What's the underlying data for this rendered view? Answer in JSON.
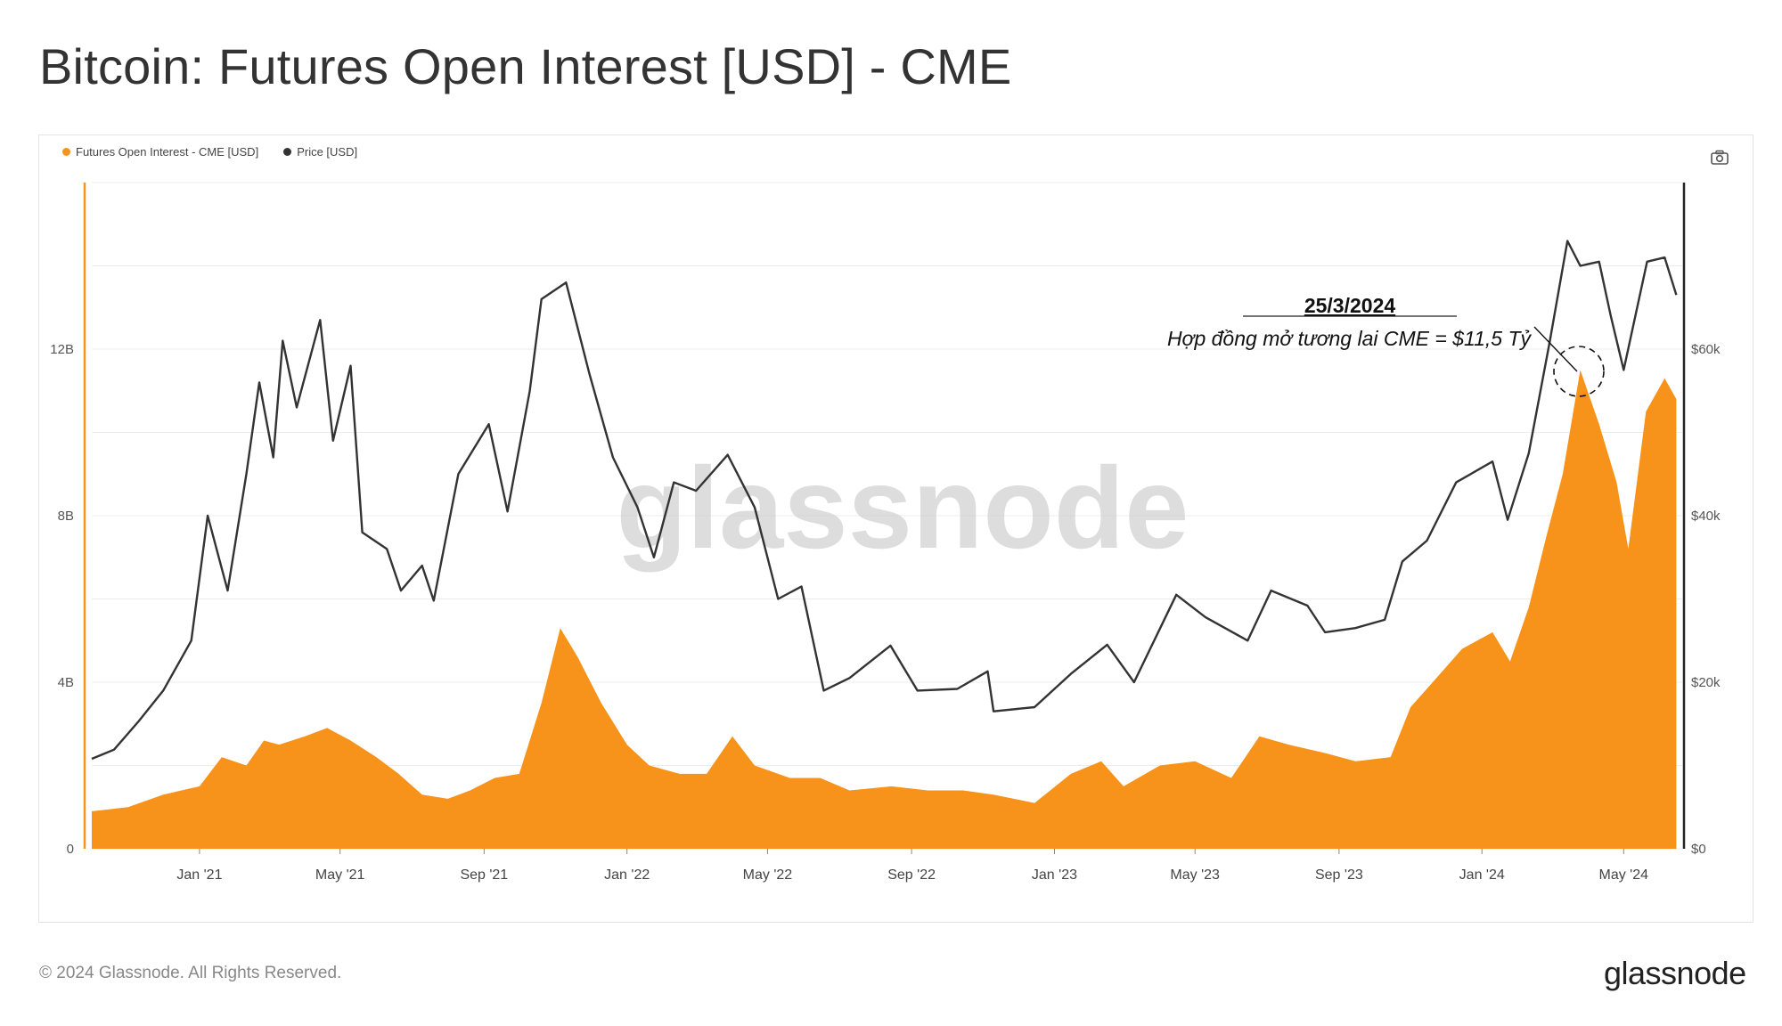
{
  "header": {
    "title": "Bitcoin: Futures Open Interest [USD] - CME"
  },
  "legend": [
    {
      "label": "Futures Open Interest - CME [USD]",
      "color": "#f7931a"
    },
    {
      "label": "Price [USD]",
      "color": "#333333"
    }
  ],
  "toolbar": {
    "screenshot_icon": "camera-icon"
  },
  "watermark": "glassnode",
  "footer": {
    "copyright": "© 2024 Glassnode. All Rights Reserved.",
    "logo": "glassnode"
  },
  "annotation": {
    "date": "25/3/2024",
    "text": "Hợp đồng mở tương lai CME = $11,5 Tỷ",
    "point": {
      "date": "2024-03-25",
      "open_interest_usd": 11500000000
    }
  },
  "chart_data": {
    "type": "area+line",
    "x_range": [
      "2020-10-01",
      "2024-06-20"
    ],
    "x_ticks": [
      {
        "date": "2021-01-01",
        "label": "Jan '21"
      },
      {
        "date": "2021-05-01",
        "label": "May '21"
      },
      {
        "date": "2021-09-01",
        "label": "Sep '21"
      },
      {
        "date": "2022-01-01",
        "label": "Jan '22"
      },
      {
        "date": "2022-05-01",
        "label": "May '22"
      },
      {
        "date": "2022-09-01",
        "label": "Sep '22"
      },
      {
        "date": "2023-01-01",
        "label": "Jan '23"
      },
      {
        "date": "2023-05-01",
        "label": "May '23"
      },
      {
        "date": "2023-09-01",
        "label": "Sep '23"
      },
      {
        "date": "2024-01-01",
        "label": "Jan '24"
      },
      {
        "date": "2024-05-01",
        "label": "May '24"
      }
    ],
    "y_left": {
      "ticks": [
        {
          "value": 0,
          "label": "0"
        },
        {
          "value": 4000000000,
          "label": "4B"
        },
        {
          "value": 8000000000,
          "label": "8B"
        },
        {
          "value": 12000000000,
          "label": "12B"
        }
      ],
      "range": [
        0,
        16000000000
      ]
    },
    "y_right": {
      "ticks": [
        {
          "value": 0,
          "label": "$0"
        },
        {
          "value": 20000,
          "label": "$20k"
        },
        {
          "value": 40000,
          "label": "$40k"
        },
        {
          "value": 60000,
          "label": "$60k"
        }
      ],
      "range": [
        0,
        80000
      ]
    },
    "grid": true,
    "legend_position": "top-left",
    "series": [
      {
        "name": "Futures Open Interest - CME [USD]",
        "type": "area",
        "axis": "left",
        "color": "#f7931a",
        "points": [
          [
            "2020-10-01",
            900000000.0
          ],
          [
            "2020-11-01",
            1000000000.0
          ],
          [
            "2020-12-01",
            1300000000.0
          ],
          [
            "2021-01-01",
            1500000000.0
          ],
          [
            "2021-01-20",
            2200000000.0
          ],
          [
            "2021-02-10",
            2000000000.0
          ],
          [
            "2021-02-25",
            2600000000.0
          ],
          [
            "2021-03-10",
            2500000000.0
          ],
          [
            "2021-04-01",
            2700000000.0
          ],
          [
            "2021-04-20",
            2900000000.0
          ],
          [
            "2021-05-10",
            2600000000.0
          ],
          [
            "2021-06-01",
            2200000000.0
          ],
          [
            "2021-06-20",
            1800000000.0
          ],
          [
            "2021-07-10",
            1300000000.0
          ],
          [
            "2021-08-01",
            1200000000.0
          ],
          [
            "2021-08-20",
            1400000000.0
          ],
          [
            "2021-09-10",
            1700000000.0
          ],
          [
            "2021-10-01",
            1800000000.0
          ],
          [
            "2021-10-20",
            3500000000.0
          ],
          [
            "2021-11-05",
            5300000000.0
          ],
          [
            "2021-11-20",
            4600000000.0
          ],
          [
            "2021-12-10",
            3500000000.0
          ],
          [
            "2022-01-01",
            2500000000.0
          ],
          [
            "2022-01-20",
            2000000000.0
          ],
          [
            "2022-02-15",
            1800000000.0
          ],
          [
            "2022-03-10",
            1800000000.0
          ],
          [
            "2022-04-01",
            2700000000.0
          ],
          [
            "2022-04-20",
            2000000000.0
          ],
          [
            "2022-05-20",
            1700000000.0
          ],
          [
            "2022-06-15",
            1700000000.0
          ],
          [
            "2022-07-10",
            1400000000.0
          ],
          [
            "2022-08-15",
            1500000000.0
          ],
          [
            "2022-09-15",
            1400000000.0
          ],
          [
            "2022-10-15",
            1400000000.0
          ],
          [
            "2022-11-10",
            1300000000.0
          ],
          [
            "2022-12-15",
            1100000000.0
          ],
          [
            "2023-01-15",
            1800000000.0
          ],
          [
            "2023-02-10",
            2100000000.0
          ],
          [
            "2023-03-01",
            1500000000.0
          ],
          [
            "2023-04-01",
            2000000000.0
          ],
          [
            "2023-05-01",
            2100000000.0
          ],
          [
            "2023-06-01",
            1700000000.0
          ],
          [
            "2023-06-25",
            2700000000.0
          ],
          [
            "2023-07-20",
            2500000000.0
          ],
          [
            "2023-08-20",
            2300000000.0
          ],
          [
            "2023-09-15",
            2100000000.0
          ],
          [
            "2023-10-15",
            2200000000.0
          ],
          [
            "2023-11-01",
            3400000000.0
          ],
          [
            "2023-11-20",
            4000000000.0
          ],
          [
            "2023-12-15",
            4800000000.0
          ],
          [
            "2024-01-10",
            5200000000.0
          ],
          [
            "2024-01-25",
            4500000000.0
          ],
          [
            "2024-02-10",
            5800000000.0
          ],
          [
            "2024-02-25",
            7500000000.0
          ],
          [
            "2024-03-10",
            9000000000.0
          ],
          [
            "2024-03-25",
            11500000000.0
          ],
          [
            "2024-04-10",
            10200000000.0
          ],
          [
            "2024-04-25",
            8800000000.0
          ],
          [
            "2024-05-05",
            7200000000.0
          ],
          [
            "2024-05-20",
            10500000000.0
          ],
          [
            "2024-06-05",
            11300000000.0
          ],
          [
            "2024-06-15",
            10800000000.0
          ]
        ]
      },
      {
        "name": "Price [USD]",
        "type": "line",
        "axis": "right",
        "color": "#333333",
        "points": [
          [
            "2020-10-01",
            10800
          ],
          [
            "2020-10-20",
            11900
          ],
          [
            "2020-11-10",
            15300
          ],
          [
            "2020-12-01",
            19000
          ],
          [
            "2020-12-25",
            25000
          ],
          [
            "2021-01-08",
            40000
          ],
          [
            "2021-01-25",
            31000
          ],
          [
            "2021-02-10",
            45000
          ],
          [
            "2021-02-21",
            56000
          ],
          [
            "2021-03-05",
            47000
          ],
          [
            "2021-03-13",
            61000
          ],
          [
            "2021-03-25",
            53000
          ],
          [
            "2021-04-14",
            63500
          ],
          [
            "2021-04-25",
            49000
          ],
          [
            "2021-05-10",
            58000
          ],
          [
            "2021-05-20",
            38000
          ],
          [
            "2021-06-10",
            36000
          ],
          [
            "2021-06-22",
            31000
          ],
          [
            "2021-07-10",
            34000
          ],
          [
            "2021-07-20",
            29800
          ],
          [
            "2021-08-10",
            45000
          ],
          [
            "2021-09-05",
            51000
          ],
          [
            "2021-09-21",
            40500
          ],
          [
            "2021-10-10",
            55000
          ],
          [
            "2021-10-20",
            66000
          ],
          [
            "2021-11-10",
            68000
          ],
          [
            "2021-11-30",
            57000
          ],
          [
            "2021-12-20",
            47000
          ],
          [
            "2022-01-10",
            41000
          ],
          [
            "2022-01-24",
            35000
          ],
          [
            "2022-02-10",
            44000
          ],
          [
            "2022-03-01",
            43000
          ],
          [
            "2022-03-28",
            47300
          ],
          [
            "2022-04-20",
            41000
          ],
          [
            "2022-05-10",
            30000
          ],
          [
            "2022-05-30",
            31500
          ],
          [
            "2022-06-18",
            19000
          ],
          [
            "2022-07-10",
            20500
          ],
          [
            "2022-08-14",
            24400
          ],
          [
            "2022-09-06",
            19000
          ],
          [
            "2022-10-10",
            19200
          ],
          [
            "2022-11-05",
            21300
          ],
          [
            "2022-11-10",
            16500
          ],
          [
            "2022-12-15",
            17000
          ],
          [
            "2023-01-15",
            21000
          ],
          [
            "2023-02-15",
            24500
          ],
          [
            "2023-03-10",
            20000
          ],
          [
            "2023-04-15",
            30500
          ],
          [
            "2023-05-10",
            27800
          ],
          [
            "2023-06-15",
            25000
          ],
          [
            "2023-07-05",
            31000
          ],
          [
            "2023-08-05",
            29200
          ],
          [
            "2023-08-20",
            26000
          ],
          [
            "2023-09-15",
            26500
          ],
          [
            "2023-10-10",
            27500
          ],
          [
            "2023-10-25",
            34500
          ],
          [
            "2023-11-15",
            37000
          ],
          [
            "2023-12-10",
            44000
          ],
          [
            "2024-01-10",
            46500
          ],
          [
            "2024-01-23",
            39500
          ],
          [
            "2024-02-10",
            47500
          ],
          [
            "2024-02-28",
            61000
          ],
          [
            "2024-03-14",
            73000
          ],
          [
            "2024-03-25",
            70000
          ],
          [
            "2024-04-10",
            70500
          ],
          [
            "2024-04-20",
            64000
          ],
          [
            "2024-05-01",
            57500
          ],
          [
            "2024-05-21",
            70500
          ],
          [
            "2024-06-05",
            71000
          ],
          [
            "2024-06-15",
            66500
          ]
        ]
      }
    ]
  }
}
